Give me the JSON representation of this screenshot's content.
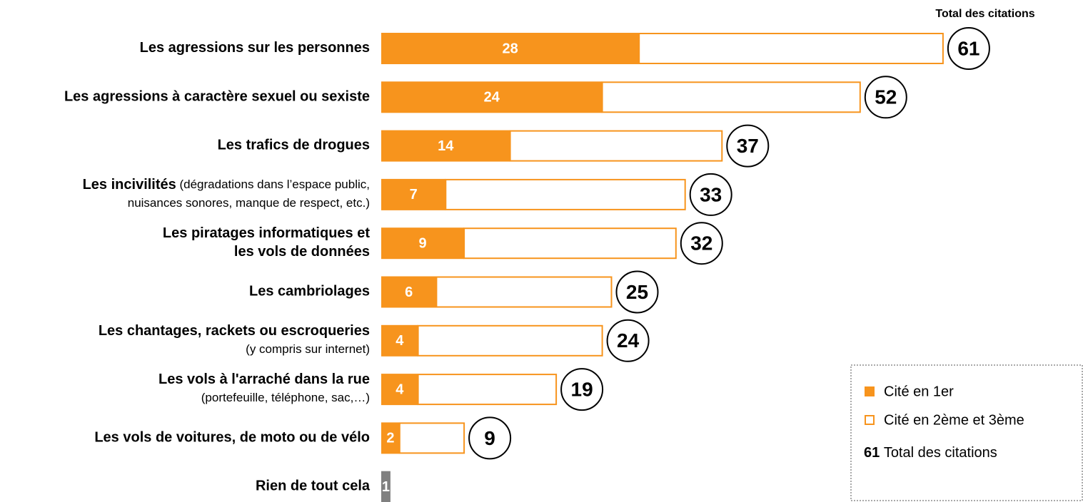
{
  "chart_data": {
    "type": "stacked_bar_horizontal",
    "totals_header": "Total des citations",
    "categories": [
      [
        [
          {
            "t": "Les agressions sur les personnes",
            "b": true
          }
        ]
      ],
      [
        [
          {
            "t": "Les agressions à caractère sexuel ou sexiste",
            "b": true
          }
        ]
      ],
      [
        [
          {
            "t": "Les trafics de drogues",
            "b": true
          }
        ]
      ],
      [
        [
          {
            "t": "Les incivilités",
            "b": true
          },
          {
            "t": " (dégradations dans l’espace public,",
            "b": false
          }
        ],
        [
          {
            "t": "nuisances sonores, manque de respect, etc.)",
            "b": false
          }
        ]
      ],
      [
        [
          {
            "t": "Les piratages informatiques et",
            "b": true
          }
        ],
        [
          {
            "t": "les vols de données",
            "b": true
          }
        ]
      ],
      [
        [
          {
            "t": "Les cambriolages",
            "b": true
          }
        ]
      ],
      [
        [
          {
            "t": "Les chantages, rackets ou escroqueries",
            "b": true
          }
        ],
        [
          {
            "t": "(y compris sur internet)",
            "b": false
          }
        ]
      ],
      [
        [
          {
            "t": "Les vols à l'arraché dans la rue",
            "b": true
          }
        ],
        [
          {
            "t": "(portefeuille, téléphone, sac,…)",
            "b": false
          }
        ]
      ],
      [
        [
          {
            "t": "Les vols de voitures, de moto ou de vélo",
            "b": true
          }
        ]
      ],
      [
        [
          {
            "t": "Rien de tout cela",
            "b": true
          }
        ]
      ]
    ],
    "series": [
      {
        "name": "Cité en 1er",
        "color": "#f7941d",
        "values": [
          28,
          24,
          14,
          7,
          9,
          6,
          4,
          4,
          2,
          1
        ],
        "point_colors": [
          "#f7941d",
          "#f7941d",
          "#f7941d",
          "#f7941d",
          "#f7941d",
          "#f7941d",
          "#f7941d",
          "#f7941d",
          "#f7941d",
          "#808080"
        ]
      },
      {
        "name": "Cité en 2ème et 3ème",
        "color": "#f7941d",
        "values": [
          33,
          28,
          23,
          26,
          23,
          19,
          20,
          15,
          7,
          null
        ]
      }
    ],
    "totals": [
      61,
      52,
      37,
      33,
      32,
      25,
      24,
      19,
      9,
      null
    ],
    "legend_total": {
      "number": 61,
      "label": "Total des citations"
    }
  }
}
